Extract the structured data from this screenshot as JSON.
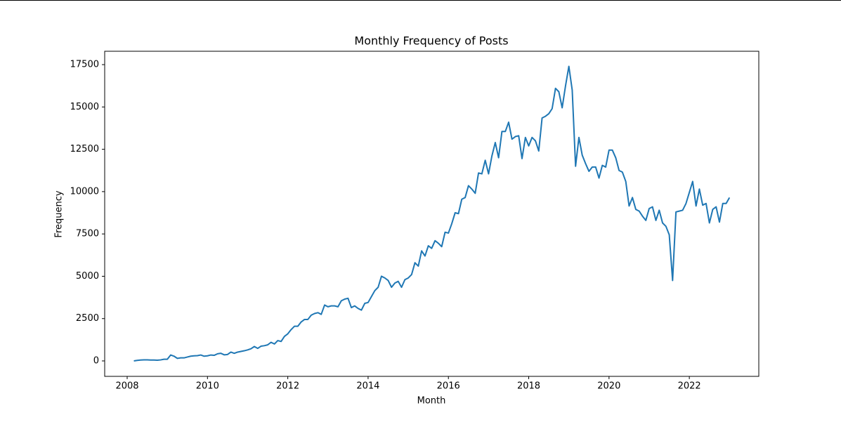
{
  "chart_data": {
    "type": "line",
    "title": "Monthly Frequency of Posts",
    "x_label": "Month",
    "y_label": "Frequency",
    "x": [
      2008.167,
      2008.25,
      2008.333,
      2008.417,
      2008.5,
      2008.583,
      2008.667,
      2008.75,
      2008.833,
      2008.917,
      2009,
      2009.083,
      2009.167,
      2009.25,
      2009.333,
      2009.417,
      2009.5,
      2009.583,
      2009.667,
      2009.75,
      2009.833,
      2009.917,
      2010,
      2010.083,
      2010.167,
      2010.25,
      2010.333,
      2010.417,
      2010.5,
      2010.583,
      2010.667,
      2010.75,
      2010.833,
      2010.917,
      2011,
      2011.083,
      2011.167,
      2011.25,
      2011.333,
      2011.417,
      2011.5,
      2011.583,
      2011.667,
      2011.75,
      2011.833,
      2011.917,
      2012,
      2012.083,
      2012.167,
      2012.25,
      2012.333,
      2012.417,
      2012.5,
      2012.583,
      2012.667,
      2012.75,
      2012.833,
      2012.917,
      2013,
      2013.083,
      2013.167,
      2013.25,
      2013.333,
      2013.417,
      2013.5,
      2013.583,
      2013.667,
      2013.75,
      2013.833,
      2013.917,
      2014,
      2014.083,
      2014.167,
      2014.25,
      2014.333,
      2014.417,
      2014.5,
      2014.583,
      2014.667,
      2014.75,
      2014.833,
      2014.917,
      2015,
      2015.083,
      2015.167,
      2015.25,
      2015.333,
      2015.417,
      2015.5,
      2015.583,
      2015.667,
      2015.75,
      2015.833,
      2015.917,
      2016,
      2016.083,
      2016.167,
      2016.25,
      2016.333,
      2016.417,
      2016.5,
      2016.583,
      2016.667,
      2016.75,
      2016.833,
      2016.917,
      2017,
      2017.083,
      2017.167,
      2017.25,
      2017.333,
      2017.417,
      2017.5,
      2017.583,
      2017.667,
      2017.75,
      2017.833,
      2017.917,
      2018,
      2018.083,
      2018.167,
      2018.25,
      2018.333,
      2018.417,
      2018.5,
      2018.583,
      2018.667,
      2018.75,
      2018.833,
      2018.917,
      2019,
      2019.083,
      2019.167,
      2019.25,
      2019.333,
      2019.417,
      2019.5,
      2019.583,
      2019.667,
      2019.75,
      2019.833,
      2019.917,
      2020,
      2020.083,
      2020.167,
      2020.25,
      2020.333,
      2020.417,
      2020.5,
      2020.583,
      2020.667,
      2020.75,
      2020.833,
      2020.917,
      2021,
      2021.083,
      2021.167,
      2021.25,
      2021.333,
      2021.417,
      2021.5,
      2021.583,
      2021.667,
      2021.75,
      2021.833,
      2021.917,
      2022,
      2022.083,
      2022.167,
      2022.25,
      2022.333,
      2022.417,
      2022.5,
      2022.583,
      2022.667,
      2022.75,
      2022.833,
      2022.917,
      2023
    ],
    "series": [
      {
        "name": "Frequency",
        "color": "#1f77b4",
        "values": [
          0,
          30,
          50,
          60,
          60,
          50,
          50,
          40,
          60,
          100,
          100,
          350,
          280,
          150,
          180,
          180,
          230,
          280,
          300,
          310,
          350,
          280,
          300,
          350,
          330,
          420,
          450,
          360,
          380,
          520,
          450,
          520,
          560,
          600,
          650,
          720,
          850,
          740,
          870,
          900,
          950,
          1100,
          1000,
          1200,
          1150,
          1450,
          1600,
          1850,
          2050,
          2050,
          2300,
          2450,
          2450,
          2700,
          2800,
          2850,
          2750,
          3300,
          3200,
          3250,
          3250,
          3200,
          3550,
          3650,
          3700,
          3150,
          3250,
          3100,
          3000,
          3400,
          3450,
          3800,
          4150,
          4350,
          5000,
          4900,
          4750,
          4350,
          4600,
          4700,
          4350,
          4800,
          4900,
          5100,
          5800,
          5600,
          6500,
          6200,
          6800,
          6650,
          7100,
          6950,
          6750,
          7600,
          7550,
          8100,
          8750,
          8700,
          9550,
          9650,
          10350,
          10150,
          9900,
          11100,
          11050,
          11850,
          11050,
          12100,
          12900,
          12000,
          13550,
          13550,
          14100,
          13100,
          13250,
          13300,
          11950,
          13200,
          12700,
          13200,
          13000,
          12400,
          14350,
          14450,
          14600,
          14900,
          16100,
          15900,
          14950,
          16250,
          17400,
          16000,
          11500,
          13200,
          12150,
          11650,
          11200,
          11450,
          11450,
          10800,
          11550,
          11450,
          12450,
          12450,
          12000,
          11250,
          11150,
          10600,
          9150,
          9650,
          8950,
          8850,
          8550,
          8300,
          9000,
          9100,
          8300,
          8900,
          8150,
          7950,
          7450,
          4750,
          8800,
          8850,
          8900,
          9300,
          9950,
          10600,
          9150,
          10150,
          9200,
          9300,
          8150,
          8950,
          9100,
          8200,
          9300,
          9300,
          9650
        ]
      }
    ],
    "xlim": [
      2007.44,
      2023.73
    ],
    "xticks": [
      2008,
      2010,
      2012,
      2014,
      2016,
      2018,
      2020,
      2022
    ],
    "ylim": [
      -912,
      18290
    ],
    "yticks": [
      0,
      2500,
      5000,
      7500,
      10000,
      12500,
      15000,
      17500
    ]
  }
}
